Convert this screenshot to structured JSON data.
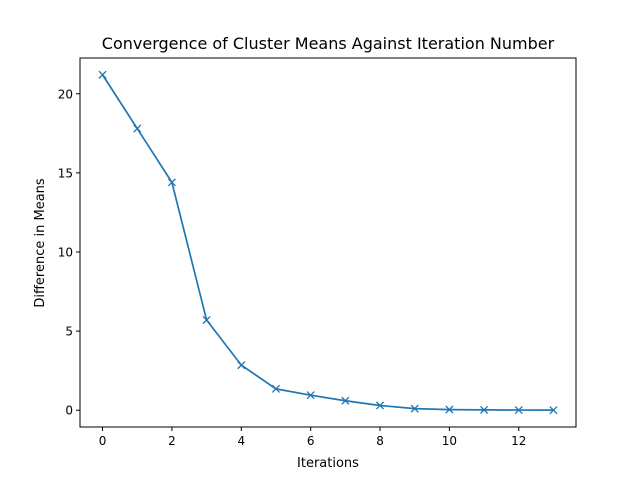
{
  "chart_data": {
    "type": "line",
    "title": "Convergence of Cluster Means Against Iteration Number",
    "xlabel": "Iterations",
    "ylabel": "Difference in Means",
    "x": [
      0,
      1,
      2,
      3,
      4,
      5,
      6,
      7,
      8,
      9,
      10,
      11,
      12,
      13
    ],
    "series": [
      {
        "values": [
          21.2,
          17.8,
          14.4,
          5.7,
          2.85,
          1.35,
          0.95,
          0.6,
          0.3,
          0.1,
          0.04,
          0.02,
          0.01,
          0.005
        ],
        "color": "#1f77b4",
        "marker": "x"
      }
    ],
    "xlim": [
      -0.65,
      13.65
    ],
    "ylim": [
      -1.06,
      22.26
    ],
    "xticks": [
      0,
      2,
      4,
      6,
      8,
      10,
      12
    ],
    "xtick_labels": [
      "0",
      "2",
      "4",
      "6",
      "8",
      "10",
      "12"
    ],
    "yticks": [
      0,
      5,
      10,
      15,
      20
    ],
    "ytick_labels": [
      "0",
      "5",
      "10",
      "15",
      "20"
    ],
    "grid": false,
    "legend": false
  }
}
